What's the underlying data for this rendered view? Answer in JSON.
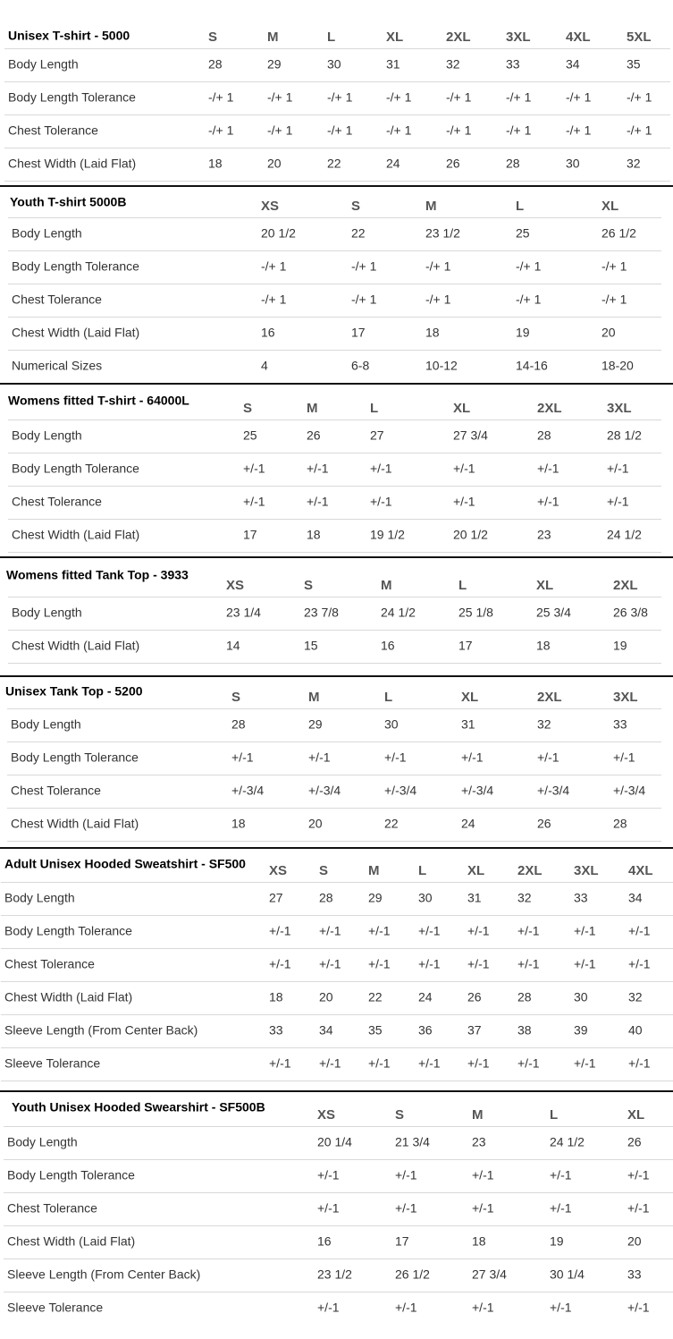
{
  "tables": [
    {
      "title": "Unisex T-shirt - 5000",
      "headers": [
        "S",
        "M",
        "L",
        "XL",
        "2XL",
        "3XL",
        "4XL",
        "5XL"
      ],
      "rows": [
        [
          "Body Length",
          "28",
          "29",
          "30",
          "31",
          "32",
          "33",
          "34",
          "35"
        ],
        [
          "Body Length Tolerance",
          "-/+ 1",
          "-/+ 1",
          "-/+ 1",
          "-/+ 1",
          "-/+ 1",
          "-/+ 1",
          "-/+ 1",
          "-/+ 1"
        ],
        [
          "Chest Tolerance",
          "-/+ 1",
          "-/+ 1",
          "-/+ 1",
          "-/+ 1",
          "-/+ 1",
          "-/+ 1",
          "-/+ 1",
          "-/+ 1"
        ],
        [
          "Chest Width (Laid Flat)",
          "18",
          "20",
          "22",
          "24",
          "26",
          "28",
          "30",
          "32"
        ]
      ]
    },
    {
      "title": "Youth T-shirt 5000B",
      "headers": [
        "XS",
        "S",
        "M",
        "L",
        "XL"
      ],
      "rows": [
        [
          "Body Length",
          "20 1/2",
          "22",
          "23 1/2",
          "25",
          "26 1/2"
        ],
        [
          "Body Length Tolerance",
          "-/+ 1",
          "-/+ 1",
          "-/+ 1",
          "-/+ 1",
          "-/+ 1"
        ],
        [
          "Chest Tolerance",
          "-/+ 1",
          "-/+ 1",
          "-/+ 1",
          "-/+ 1",
          "-/+ 1"
        ],
        [
          "Chest Width (Laid Flat)",
          "16",
          "17",
          "18",
          "19",
          "20"
        ],
        [
          "Numerical Sizes",
          "4",
          "6-8",
          "10-12",
          "14-16",
          "18-20"
        ]
      ]
    },
    {
      "title": "Womens fitted T-shirt - 64000L",
      "headers": [
        "S",
        "M",
        "L",
        "XL",
        "2XL",
        "3XL"
      ],
      "rows": [
        [
          "Body Length",
          "25",
          "26",
          "27",
          "27 3/4",
          "28",
          "28 1/2"
        ],
        [
          "Body Length Tolerance",
          "+/-1",
          "+/-1",
          "+/-1",
          "+/-1",
          "+/-1",
          "+/-1"
        ],
        [
          "Chest Tolerance",
          "+/-1",
          "+/-1",
          "+/-1",
          "+/-1",
          "+/-1",
          "+/-1"
        ],
        [
          "Chest Width (Laid Flat)",
          "17",
          "18",
          "19 1/2",
          "20 1/2",
          "23",
          "24 1/2"
        ]
      ]
    },
    {
      "title": "Womens fitted Tank Top - 3933",
      "headers": [
        "XS",
        "S",
        "M",
        "L",
        "XL",
        "2XL"
      ],
      "rows": [
        [
          "Body Length",
          "23 1/4",
          "23 7/8",
          "24 1/2",
          "25 1/8",
          "25 3/4",
          "26 3/8"
        ],
        [
          "Chest Width (Laid Flat)",
          "14",
          "15",
          "16",
          "17",
          "18",
          "19"
        ]
      ]
    },
    {
      "title": "Unisex Tank Top  - 5200",
      "headers": [
        "S",
        "M",
        "L",
        "XL",
        "2XL",
        "3XL"
      ],
      "rows": [
        [
          "Body Length",
          "28",
          "29",
          "30",
          "31",
          "32",
          "33"
        ],
        [
          "Body Length Tolerance",
          "+/-1",
          "+/-1",
          "+/-1",
          "+/-1",
          "+/-1",
          "+/-1"
        ],
        [
          "Chest Tolerance",
          "+/-3/4",
          "+/-3/4",
          "+/-3/4",
          "+/-3/4",
          "+/-3/4",
          "+/-3/4"
        ],
        [
          "Chest Width (Laid Flat)",
          "18",
          "20",
          "22",
          "24",
          "26",
          "28"
        ]
      ]
    },
    {
      "title": "Adult Unisex Hooded Sweatshirt - SF500",
      "headers": [
        "XS",
        "S",
        "M",
        "L",
        "XL",
        "2XL",
        "3XL",
        "4XL"
      ],
      "rows": [
        [
          "Body Length",
          "27",
          "28",
          "29",
          "30",
          "31",
          "32",
          "33",
          "34"
        ],
        [
          "Body Length Tolerance",
          "+/-1",
          "+/-1",
          "+/-1",
          "+/-1",
          "+/-1",
          "+/-1",
          "+/-1",
          "+/-1"
        ],
        [
          "Chest Tolerance",
          "+/-1",
          "+/-1",
          "+/-1",
          "+/-1",
          "+/-1",
          "+/-1",
          "+/-1",
          "+/-1"
        ],
        [
          "Chest Width (Laid Flat)",
          "18",
          "20",
          "22",
          "24",
          "26",
          "28",
          "30",
          "32"
        ],
        [
          "Sleeve Length (From Center Back)",
          "33",
          "34",
          "35",
          "36",
          "37",
          "38",
          "39",
          "40"
        ],
        [
          "Sleeve Tolerance",
          "+/-1",
          "+/-1",
          "+/-1",
          "+/-1",
          "+/-1",
          "+/-1",
          "+/-1",
          "+/-1"
        ]
      ]
    },
    {
      "title": "Youth Unisex Hooded Swearshirt - SF500B",
      "headers": [
        "XS",
        "S",
        "M",
        "L",
        "XL"
      ],
      "rows": [
        [
          "Body Length",
          "20 1/4",
          "21 3/4",
          "23",
          "24 1/2",
          "26"
        ],
        [
          "Body Length Tolerance",
          "+/-1",
          "+/-1",
          "+/-1",
          "+/-1",
          "+/-1"
        ],
        [
          "Chest Tolerance",
          "+/-1",
          "+/-1",
          "+/-1",
          "+/-1",
          "+/-1"
        ],
        [
          "Chest Width (Laid Flat)",
          "16",
          "17",
          "18",
          "19",
          "20"
        ],
        [
          "Sleeve Length (From Center Back)",
          "23 1/2",
          "26 1/2",
          "27 3/4",
          "30 1/4",
          "33"
        ],
        [
          "Sleeve Tolerance",
          "+/-1",
          "+/-1",
          "+/-1",
          "+/-1",
          "+/-1"
        ]
      ]
    }
  ]
}
